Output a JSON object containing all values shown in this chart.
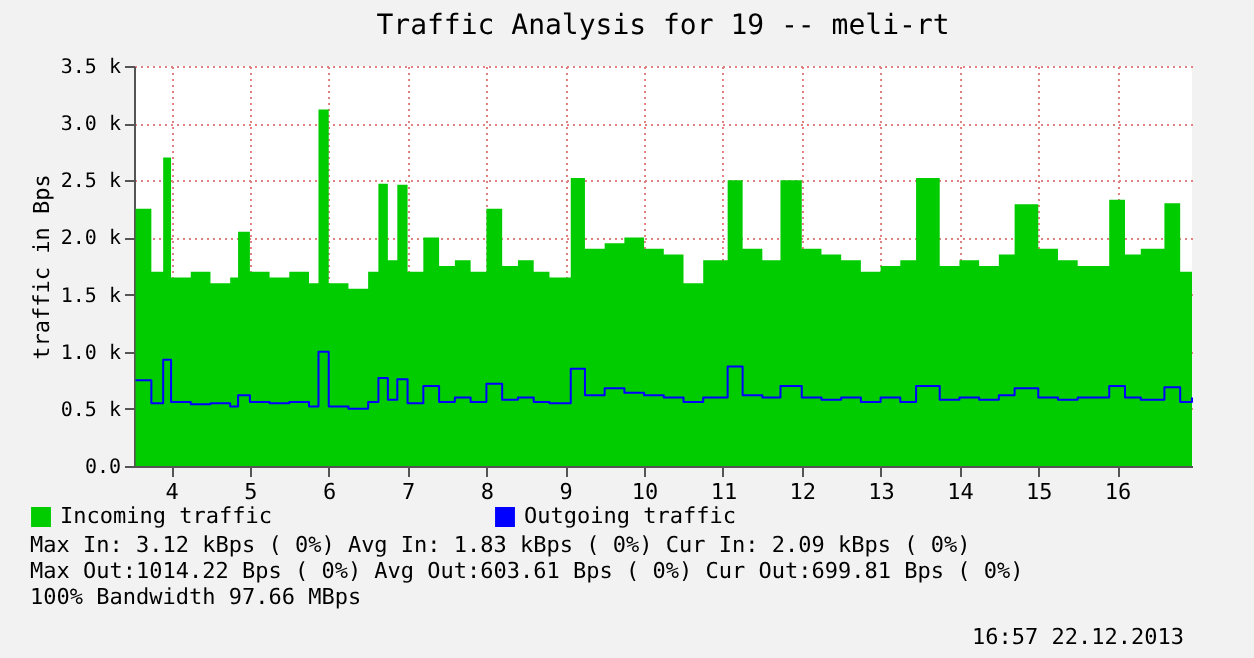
{
  "chart_data": {
    "type": "area",
    "title": "Traffic Analysis for 19 -- meli-rt",
    "ylabel": "traffic in Bps",
    "x": [
      3.55,
      3.75,
      3.9,
      4.0,
      4.25,
      4.5,
      4.75,
      4.85,
      5.0,
      5.25,
      5.5,
      5.75,
      5.87,
      6.0,
      6.25,
      6.5,
      6.63,
      6.75,
      6.87,
      7.0,
      7.2,
      7.4,
      7.6,
      7.8,
      8.0,
      8.2,
      8.4,
      8.6,
      8.8,
      9.07,
      9.25,
      9.5,
      9.75,
      10.0,
      10.25,
      10.5,
      10.75,
      11.06,
      11.25,
      11.5,
      11.73,
      12.0,
      12.25,
      12.5,
      12.75,
      13.0,
      13.25,
      13.45,
      13.75,
      14.0,
      14.25,
      14.5,
      14.7,
      15.0,
      15.25,
      15.5,
      15.9,
      16.1,
      16.3,
      16.6,
      16.8,
      16.95
    ],
    "series": [
      {
        "name": "Incoming traffic",
        "color": "#00cc00",
        "values": [
          2250,
          1700,
          2700,
          1650,
          1700,
          1600,
          1650,
          2050,
          1700,
          1650,
          1700,
          1600,
          3120,
          1600,
          1550,
          1700,
          2470,
          1800,
          2460,
          1700,
          2000,
          1750,
          1800,
          1700,
          2250,
          1750,
          1800,
          1700,
          1650,
          2520,
          1900,
          1950,
          2000,
          1900,
          1850,
          1600,
          1800,
          2500,
          1900,
          1800,
          2500,
          1900,
          1850,
          1800,
          1700,
          1750,
          1800,
          2520,
          1750,
          1800,
          1750,
          1850,
          2290,
          1900,
          1800,
          1750,
          2330,
          1850,
          1900,
          2300,
          1700,
          1550
        ]
      },
      {
        "name": "Outgoing traffic",
        "type": "step",
        "color": "#0000ff",
        "values": [
          750,
          550,
          930,
          560,
          540,
          550,
          520,
          620,
          560,
          550,
          560,
          520,
          1000,
          520,
          500,
          560,
          770,
          580,
          760,
          550,
          700,
          560,
          600,
          560,
          720,
          580,
          600,
          560,
          550,
          850,
          620,
          680,
          640,
          620,
          600,
          560,
          600,
          870,
          620,
          600,
          700,
          600,
          580,
          600,
          560,
          600,
          560,
          700,
          580,
          600,
          580,
          620,
          680,
          600,
          580,
          600,
          700,
          600,
          580,
          690,
          560,
          600
        ]
      }
    ],
    "xlim": [
      3.53,
      16.95
    ],
    "xticks": [
      4,
      5,
      6,
      7,
      8,
      9,
      10,
      11,
      12,
      13,
      14,
      15,
      16
    ],
    "ylim": [
      0,
      3500
    ],
    "yticks": [
      {
        "value": 0,
        "label": "0.0"
      },
      {
        "value": 500,
        "label": "0.5 k"
      },
      {
        "value": 1000,
        "label": "1.0 k"
      },
      {
        "value": 1500,
        "label": "1.5 k"
      },
      {
        "value": 2000,
        "label": "2.0 k"
      },
      {
        "value": 2500,
        "label": "2.5 k"
      },
      {
        "value": 3000,
        "label": "3.0 k"
      },
      {
        "value": 3500,
        "label": "3.5 k"
      }
    ],
    "grid": true,
    "legend": "bottom left",
    "annotations": [
      "Max In:   3.12 kBps ( 0%)  Avg In:   1.83 kBps ( 0%)  Cur In:   2.09 kBps ( 0%)",
      "Max Out:1014.22  Bps ( 0%)  Avg Out:603.61  Bps ( 0%)  Cur Out:699.81  Bps ( 0%)",
      "100% Bandwidth 97.66 MBps",
      "16:57 22.12.2013"
    ]
  }
}
